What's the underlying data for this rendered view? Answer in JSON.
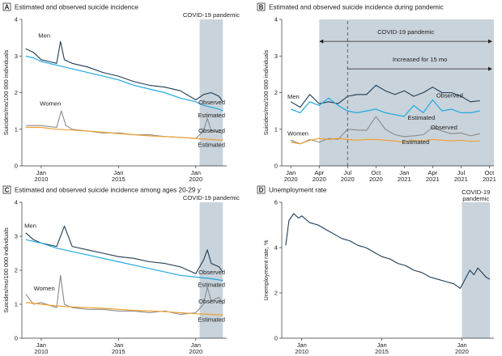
{
  "colors": {
    "men_observed": "#1d3c54",
    "men_estimated": "#20a9e0",
    "women_observed": "#8a8a8a",
    "women_estimated": "#f0a030",
    "unemployment": "#1d3c54",
    "covid_shade": "#c9d3db"
  },
  "chart_data": [
    {
      "id": "A",
      "type": "line",
      "title": "Estimated and observed suicide incidence",
      "ylabel": "Suicides/mo/100 000 individuals",
      "xlim": [
        2008.75,
        2022.0
      ],
      "ylim": [
        0,
        4
      ],
      "yticks": [
        "0",
        "1",
        "2",
        "3",
        "4"
      ],
      "xticks": [
        {
          "x": 2010,
          "line1": "Jan",
          "line2": "2010"
        },
        {
          "x": 2015,
          "line1": "Jan",
          "line2": "2015"
        },
        {
          "x": 2020,
          "line1": "Jan",
          "line2": "2020"
        }
      ],
      "shade": {
        "from": 2020.25,
        "to": 2021.75,
        "label": "COVID-19 pandemic"
      },
      "labels": {
        "men": "Men",
        "women": "Women",
        "observed": "Observed",
        "estimated": "Estimated"
      },
      "series": [
        {
          "name": "Men observed",
          "key": "men_observed",
          "x": [
            2009.0,
            2009.5,
            2010.0,
            2010.5,
            2011.0,
            2011.25,
            2011.5,
            2012.0,
            2013.0,
            2014.0,
            2015.0,
            2016.0,
            2017.0,
            2018.0,
            2019.0,
            2020.0,
            2020.5,
            2021.0,
            2021.5,
            2021.75
          ],
          "y": [
            3.2,
            3.1,
            2.9,
            2.85,
            2.8,
            3.4,
            2.9,
            2.8,
            2.7,
            2.55,
            2.45,
            2.3,
            2.2,
            2.15,
            2.05,
            1.8,
            1.95,
            2.0,
            1.9,
            1.75
          ]
        },
        {
          "name": "Men estimated",
          "key": "men_estimated",
          "x": [
            2009.0,
            2009.5,
            2010.0,
            2011.0,
            2012.0,
            2013.0,
            2014.0,
            2015.0,
            2016.0,
            2017.0,
            2018.0,
            2019.0,
            2020.0,
            2020.5,
            2021.0,
            2021.5,
            2021.75
          ],
          "y": [
            3.0,
            2.95,
            2.85,
            2.75,
            2.65,
            2.55,
            2.45,
            2.35,
            2.2,
            2.1,
            2.0,
            1.85,
            1.75,
            1.65,
            1.6,
            1.55,
            1.5
          ]
        },
        {
          "name": "Women observed",
          "key": "women_observed",
          "x": [
            2009.0,
            2010.0,
            2011.0,
            2011.3,
            2011.6,
            2012.0,
            2013.0,
            2014.0,
            2015.0,
            2016.0,
            2017.0,
            2018.0,
            2019.0,
            2020.0,
            2020.5,
            2020.75,
            2021.0,
            2021.5,
            2021.75
          ],
          "y": [
            1.1,
            1.1,
            1.05,
            1.5,
            1.1,
            1.0,
            0.95,
            0.9,
            0.9,
            0.85,
            0.85,
            0.8,
            0.78,
            0.75,
            0.95,
            1.3,
            0.95,
            0.92,
            0.88
          ]
        },
        {
          "name": "Women estimated",
          "key": "women_estimated",
          "x": [
            2009.0,
            2010.0,
            2011.0,
            2012.0,
            2013.0,
            2014.0,
            2015.0,
            2016.0,
            2017.0,
            2018.0,
            2019.0,
            2020.0,
            2021.0,
            2021.75
          ],
          "y": [
            1.05,
            1.05,
            1.0,
            0.98,
            0.95,
            0.92,
            0.88,
            0.85,
            0.82,
            0.8,
            0.78,
            0.75,
            0.72,
            0.7
          ]
        }
      ]
    },
    {
      "id": "B",
      "type": "line",
      "title": "Estimated and observed suicide incidence during pandemic",
      "ylabel": "Suicides/mo/100 000 individuals",
      "xlim": [
        2019.92,
        2021.79
      ],
      "ylim": [
        0,
        4
      ],
      "yticks": [
        "0",
        "1",
        "2",
        "3",
        "4"
      ],
      "xticks": [
        {
          "x": 2020.0,
          "line1": "Jan",
          "line2": "2020"
        },
        {
          "x": 2020.25,
          "line1": "Apr",
          "line2": "2020"
        },
        {
          "x": 2020.5,
          "line1": "Jul",
          "line2": "2020"
        },
        {
          "x": 2020.75,
          "line1": "Oct",
          "line2": "2020"
        },
        {
          "x": 2021.0,
          "line1": "Jan",
          "line2": "2021"
        },
        {
          "x": 2021.25,
          "line1": "Apr",
          "line2": "2021"
        },
        {
          "x": 2021.5,
          "line1": "Jul",
          "line2": "2021"
        },
        {
          "x": 2021.75,
          "line1": "Oct",
          "line2": "2021"
        }
      ],
      "shade": {
        "from": 2020.25,
        "to": 2021.79,
        "label": "COVID-19 pandemic"
      },
      "dashed_line_x": 2020.5,
      "increase_label": "Increased for 15 mo",
      "labels": {
        "men": "Men",
        "women": "Women",
        "observed": "Observed",
        "estimated": "Estimated"
      },
      "series": [
        {
          "name": "Men observed",
          "key": "men_observed",
          "x": [
            2020.0,
            2020.083,
            2020.167,
            2020.25,
            2020.333,
            2020.417,
            2020.5,
            2020.583,
            2020.667,
            2020.75,
            2020.833,
            2020.917,
            2021.0,
            2021.083,
            2021.167,
            2021.25,
            2021.333,
            2021.417,
            2021.5,
            2021.583,
            2021.667
          ],
          "y": [
            1.75,
            1.6,
            1.95,
            1.7,
            1.75,
            1.7,
            1.9,
            1.95,
            1.95,
            2.2,
            2.05,
            1.95,
            2.05,
            1.9,
            2.0,
            2.15,
            2.0,
            2.0,
            1.9,
            1.75,
            1.78
          ]
        },
        {
          "name": "Men estimated",
          "key": "men_estimated",
          "x": [
            2020.0,
            2020.083,
            2020.167,
            2020.25,
            2020.333,
            2020.417,
            2020.5,
            2020.583,
            2020.667,
            2020.75,
            2020.833,
            2020.917,
            2021.0,
            2021.083,
            2021.167,
            2021.25,
            2021.333,
            2021.417,
            2021.5,
            2021.583,
            2021.667
          ],
          "y": [
            1.55,
            1.45,
            1.75,
            1.65,
            1.85,
            1.65,
            1.5,
            1.45,
            1.5,
            1.55,
            1.45,
            1.4,
            1.35,
            1.65,
            1.45,
            1.8,
            1.5,
            1.55,
            1.45,
            1.45,
            1.5
          ]
        },
        {
          "name": "Women observed",
          "key": "women_observed",
          "x": [
            2020.0,
            2020.083,
            2020.167,
            2020.25,
            2020.333,
            2020.417,
            2020.5,
            2020.583,
            2020.667,
            2020.75,
            2020.833,
            2020.917,
            2021.0,
            2021.083,
            2021.167,
            2021.25,
            2021.333,
            2021.417,
            2021.5,
            2021.583,
            2021.667
          ],
          "y": [
            0.7,
            0.6,
            0.72,
            0.65,
            0.75,
            0.72,
            1.0,
            0.98,
            0.97,
            1.35,
            1.0,
            0.85,
            0.8,
            0.82,
            0.85,
            1.05,
            0.95,
            0.88,
            0.9,
            0.82,
            0.88
          ]
        },
        {
          "name": "Women estimated",
          "key": "women_estimated",
          "x": [
            2020.0,
            2020.083,
            2020.167,
            2020.25,
            2020.333,
            2020.417,
            2020.5,
            2020.583,
            2020.667,
            2020.75,
            2020.833,
            2020.917,
            2021.0,
            2021.083,
            2021.167,
            2021.25,
            2021.333,
            2021.417,
            2021.5,
            2021.583,
            2021.667
          ],
          "y": [
            0.65,
            0.6,
            0.7,
            0.75,
            0.72,
            0.75,
            0.72,
            0.7,
            0.72,
            0.72,
            0.7,
            0.68,
            0.65,
            0.7,
            0.68,
            0.72,
            0.7,
            0.68,
            0.7,
            0.67,
            0.68
          ]
        }
      ]
    },
    {
      "id": "C",
      "type": "line",
      "title": "Estimated and observed suicide incidence among ages 20-29 y",
      "ylabel": "Suicides/mo/100 000 individuals",
      "xlim": [
        2008.75,
        2022.0
      ],
      "ylim": [
        0,
        4
      ],
      "yticks": [
        "0",
        "1",
        "2",
        "3",
        "4"
      ],
      "xticks": [
        {
          "x": 2010,
          "line1": "Jan",
          "line2": "2010"
        },
        {
          "x": 2015,
          "line1": "Jan",
          "line2": "2015"
        },
        {
          "x": 2020,
          "line1": "Jan",
          "line2": "2020"
        }
      ],
      "shade": {
        "from": 2020.25,
        "to": 2021.75,
        "label": "COVID-19 pandemic"
      },
      "labels": {
        "men": "Men",
        "women": "Women",
        "observed": "Observed",
        "estimated": "Estimated"
      },
      "series": [
        {
          "name": "Men observed",
          "key": "men_observed",
          "x": [
            2009.0,
            2009.5,
            2010.0,
            2011.0,
            2011.5,
            2012.0,
            2013.0,
            2014.0,
            2015.0,
            2016.0,
            2017.0,
            2018.0,
            2019.0,
            2020.0,
            2020.5,
            2020.75,
            2021.0,
            2021.5,
            2021.75
          ],
          "y": [
            3.1,
            2.9,
            2.8,
            2.7,
            3.3,
            2.7,
            2.6,
            2.5,
            2.4,
            2.35,
            2.25,
            2.2,
            2.1,
            1.9,
            2.3,
            2.6,
            2.2,
            2.1,
            1.95
          ]
        },
        {
          "name": "Men estimated",
          "key": "men_estimated",
          "x": [
            2009.0,
            2010.0,
            2011.0,
            2012.0,
            2013.0,
            2014.0,
            2015.0,
            2016.0,
            2017.0,
            2018.0,
            2019.0,
            2020.0,
            2021.0,
            2021.75
          ],
          "y": [
            2.9,
            2.8,
            2.65,
            2.55,
            2.45,
            2.35,
            2.25,
            2.15,
            2.05,
            1.95,
            1.85,
            1.8,
            1.75,
            1.7
          ]
        },
        {
          "name": "Women observed",
          "key": "women_observed",
          "x": [
            2009.0,
            2009.5,
            2010.0,
            2011.0,
            2011.25,
            2011.5,
            2012.0,
            2013.0,
            2014.0,
            2015.0,
            2016.0,
            2017.0,
            2018.0,
            2019.0,
            2020.0,
            2020.5,
            2020.75,
            2021.0,
            2021.5,
            2021.75
          ],
          "y": [
            1.3,
            1.0,
            1.05,
            0.9,
            1.85,
            1.0,
            0.9,
            0.85,
            0.85,
            0.8,
            0.8,
            0.75,
            0.8,
            0.7,
            0.75,
            1.0,
            1.5,
            1.1,
            1.2,
            1.0
          ]
        },
        {
          "name": "Women estimated",
          "key": "women_estimated",
          "x": [
            2009.0,
            2010.0,
            2011.0,
            2012.0,
            2013.0,
            2014.0,
            2015.0,
            2016.0,
            2017.0,
            2018.0,
            2019.0,
            2020.0,
            2021.0,
            2021.75
          ],
          "y": [
            1.05,
            1.0,
            0.95,
            0.92,
            0.9,
            0.88,
            0.85,
            0.82,
            0.8,
            0.78,
            0.75,
            0.72,
            0.7,
            0.68
          ]
        }
      ]
    },
    {
      "id": "D",
      "type": "line",
      "title": "Unemployment rate",
      "ylabel": "Unemployment rate, %",
      "xlim": [
        2008.75,
        2022.0
      ],
      "ylim": [
        0,
        6
      ],
      "yticks": [
        "0",
        "2",
        "4",
        "6"
      ],
      "xticks": [
        {
          "x": 2010,
          "line1": "Jan",
          "line2": "2010"
        },
        {
          "x": 2015,
          "line1": "Jan",
          "line2": "2015"
        },
        {
          "x": 2020,
          "line1": "Jan",
          "line2": "2020"
        }
      ],
      "shade": {
        "from": 2020.0,
        "to": 2021.75,
        "label_line1": "COVID-19",
        "label_line2": "pandemic"
      },
      "series": [
        {
          "name": "Unemployment rate",
          "key": "unemployment",
          "x": [
            2009.0,
            2009.2,
            2009.5,
            2009.8,
            2010.0,
            2010.5,
            2011.0,
            2011.5,
            2012.0,
            2012.5,
            2013.0,
            2013.5,
            2014.0,
            2014.5,
            2015.0,
            2015.5,
            2016.0,
            2016.5,
            2017.0,
            2017.5,
            2018.0,
            2018.5,
            2019.0,
            2019.5,
            2019.9,
            2020.2,
            2020.5,
            2020.75,
            2021.0,
            2021.25,
            2021.5,
            2021.75
          ],
          "y": [
            4.1,
            5.2,
            5.5,
            5.3,
            5.4,
            5.1,
            5.0,
            4.8,
            4.6,
            4.4,
            4.3,
            4.1,
            4.0,
            3.8,
            3.6,
            3.5,
            3.3,
            3.2,
            3.0,
            2.9,
            2.7,
            2.6,
            2.5,
            2.4,
            2.2,
            2.6,
            3.0,
            2.8,
            3.1,
            2.9,
            2.7,
            2.6
          ]
        }
      ]
    }
  ]
}
